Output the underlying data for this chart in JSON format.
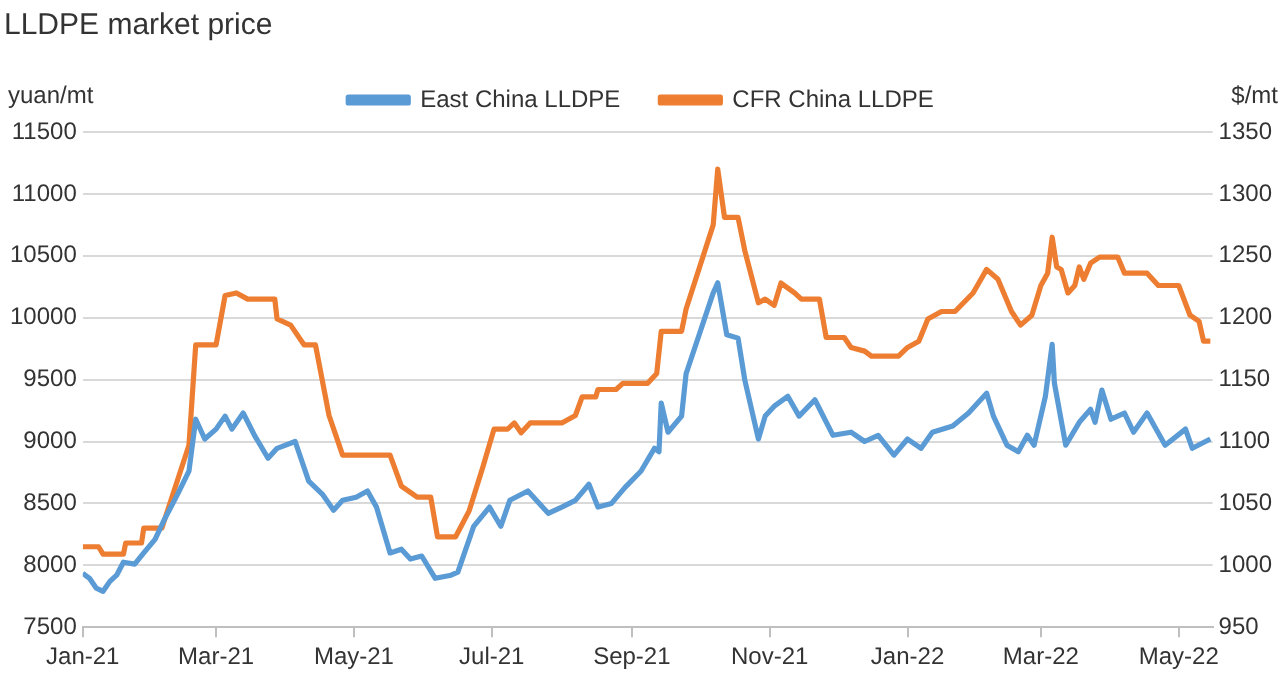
{
  "chart_data": {
    "type": "line",
    "title": "LLDPE market price",
    "ylabel": "yuan/mt",
    "y2label": "$/mt",
    "legend": "top",
    "grid": "y",
    "marker": "none",
    "line_style": "solid",
    "xlim": [
      "2021-01-01",
      "2022-05-16"
    ],
    "xticks": [
      {
        "value": "2021-01-01",
        "label": "Jan-21"
      },
      {
        "value": "2021-03-01",
        "label": "Mar-21"
      },
      {
        "value": "2021-05-01",
        "label": "May-21"
      },
      {
        "value": "2021-07-01",
        "label": "Jul-21"
      },
      {
        "value": "2021-09-01",
        "label": "Sep-21"
      },
      {
        "value": "2021-11-01",
        "label": "Nov-21"
      },
      {
        "value": "2022-01-01",
        "label": "Jan-22"
      },
      {
        "value": "2022-03-01",
        "label": "Mar-22"
      },
      {
        "value": "2022-05-01",
        "label": "May-22"
      }
    ],
    "ylim": [
      7500,
      11500
    ],
    "yticks": [
      7500,
      8000,
      8500,
      9000,
      9500,
      10000,
      10500,
      11000,
      11500
    ],
    "y2lim": [
      950,
      1350
    ],
    "y2ticks": [
      950,
      1000,
      1050,
      1100,
      1150,
      1200,
      1250,
      1300,
      1350
    ],
    "series": [
      {
        "name": "East China LLDPE",
        "color": "#5b9bd5",
        "x": [
          "2021-01-01",
          "2021-01-04",
          "2021-01-07",
          "2021-01-10",
          "2021-01-13",
          "2021-01-16",
          "2021-01-19",
          "2021-01-24",
          "2021-01-28",
          "2021-02-02",
          "2021-02-06",
          "2021-02-12",
          "2021-02-17",
          "2021-02-20",
          "2021-02-24",
          "2021-03-01",
          "2021-03-05",
          "2021-03-08",
          "2021-03-13",
          "2021-03-18",
          "2021-03-24",
          "2021-03-28",
          "2021-04-05",
          "2021-04-11",
          "2021-04-17",
          "2021-04-22",
          "2021-04-26",
          "2021-05-02",
          "2021-05-07",
          "2021-05-11",
          "2021-05-17",
          "2021-05-22",
          "2021-05-26",
          "2021-05-31",
          "2021-06-06",
          "2021-06-13",
          "2021-06-16",
          "2021-06-23",
          "2021-06-30",
          "2021-07-05",
          "2021-07-09",
          "2021-07-17",
          "2021-07-26",
          "2021-08-01",
          "2021-08-07",
          "2021-08-13",
          "2021-08-17",
          "2021-08-23",
          "2021-08-29",
          "2021-09-05",
          "2021-09-11",
          "2021-09-13",
          "2021-09-14",
          "2021-09-17",
          "2021-09-23",
          "2021-09-25",
          "2021-10-07",
          "2021-10-09",
          "2021-10-13",
          "2021-10-18",
          "2021-10-21",
          "2021-10-27",
          "2021-10-30",
          "2021-11-03",
          "2021-11-09",
          "2021-11-14",
          "2021-11-21",
          "2021-11-29",
          "2021-12-07",
          "2021-12-13",
          "2021-12-19",
          "2021-12-26",
          "2022-01-01",
          "2022-01-07",
          "2022-01-12",
          "2022-01-21",
          "2022-01-28",
          "2022-02-05",
          "2022-02-08",
          "2022-02-14",
          "2022-02-19",
          "2022-02-23",
          "2022-02-26",
          "2022-03-03",
          "2022-03-06",
          "2022-03-07",
          "2022-03-12",
          "2022-03-18",
          "2022-03-23",
          "2022-03-25",
          "2022-03-28",
          "2022-04-01",
          "2022-04-07",
          "2022-04-11",
          "2022-04-17",
          "2022-04-25",
          "2022-05-04",
          "2022-05-07",
          "2022-05-15"
        ],
        "values": [
          7935,
          7895,
          7815,
          7790,
          7870,
          7920,
          8025,
          8010,
          8100,
          8210,
          8365,
          8575,
          8760,
          9180,
          9020,
          9100,
          9205,
          9100,
          9230,
          9050,
          8865,
          8945,
          9000,
          8680,
          8575,
          8445,
          8525,
          8550,
          8600,
          8470,
          8100,
          8130,
          8050,
          8075,
          7895,
          7920,
          7945,
          8315,
          8470,
          8315,
          8525,
          8600,
          8420,
          8470,
          8525,
          8655,
          8470,
          8500,
          8630,
          8760,
          8945,
          8917,
          9310,
          9075,
          9205,
          9547,
          10200,
          10282,
          9862,
          9835,
          9495,
          9020,
          9205,
          9285,
          9365,
          9205,
          9337,
          9050,
          9075,
          9000,
          9050,
          8890,
          9020,
          8945,
          9075,
          9125,
          9230,
          9390,
          9205,
          8970,
          8917,
          9050,
          8970,
          9365,
          9785,
          9470,
          8970,
          9155,
          9260,
          9155,
          9415,
          9180,
          9230,
          9075,
          9230,
          8970,
          9100,
          8945,
          9020
        ]
      },
      {
        "name": "CFR China LLDPE",
        "color": "#ed7d31",
        "axis": "y2",
        "x": [
          "2021-01-01",
          "2021-01-08",
          "2021-01-10",
          "2021-01-19",
          "2021-01-20",
          "2021-01-27",
          "2021-01-28",
          "2021-02-05",
          "2021-02-17",
          "2021-02-20",
          "2021-03-01",
          "2021-03-05",
          "2021-03-10",
          "2021-03-15",
          "2021-03-27",
          "2021-03-28",
          "2021-04-03",
          "2021-04-09",
          "2021-04-14",
          "2021-04-20",
          "2021-04-26",
          "2021-05-17",
          "2021-05-22",
          "2021-05-29",
          "2021-06-04",
          "2021-06-07",
          "2021-06-15",
          "2021-06-21",
          "2021-06-27",
          "2021-07-02",
          "2021-07-08",
          "2021-07-11",
          "2021-07-14",
          "2021-07-18",
          "2021-08-01",
          "2021-08-07",
          "2021-08-10",
          "2021-08-16",
          "2021-08-17",
          "2021-08-25",
          "2021-08-28",
          "2021-09-08",
          "2021-09-12",
          "2021-09-14",
          "2021-09-23",
          "2021-09-25",
          "2021-10-07",
          "2021-10-09",
          "2021-10-12",
          "2021-10-18",
          "2021-10-21",
          "2021-10-27",
          "2021-10-30",
          "2021-11-03",
          "2021-11-06",
          "2021-11-12",
          "2021-11-15",
          "2021-11-23",
          "2021-11-26",
          "2021-12-04",
          "2021-12-07",
          "2021-12-13",
          "2021-12-16",
          "2021-12-28",
          "2022-01-01",
          "2022-01-06",
          "2022-01-10",
          "2022-01-16",
          "2022-01-22",
          "2022-01-30",
          "2022-02-05",
          "2022-02-10",
          "2022-02-16",
          "2022-02-20",
          "2022-02-25",
          "2022-03-01",
          "2022-03-04",
          "2022-03-06",
          "2022-03-08",
          "2022-03-10",
          "2022-03-13",
          "2022-03-16",
          "2022-03-18",
          "2022-03-20",
          "2022-03-23",
          "2022-03-27",
          "2022-04-04",
          "2022-04-07",
          "2022-04-17",
          "2022-04-22",
          "2022-05-01",
          "2022-05-06",
          "2022-05-10",
          "2022-05-12",
          "2022-05-15"
        ],
        "values": [
          1015,
          1015,
          1009,
          1009,
          1018,
          1018,
          1030,
          1030,
          1097,
          1178,
          1178,
          1218,
          1220,
          1215,
          1215,
          1199,
          1194,
          1178,
          1178,
          1121,
          1089,
          1089,
          1064,
          1055,
          1055,
          1023,
          1023,
          1044,
          1079,
          1110,
          1110,
          1115,
          1107,
          1115,
          1115,
          1121,
          1136,
          1136,
          1142,
          1142,
          1147,
          1147,
          1155,
          1189,
          1189,
          1207,
          1275,
          1320,
          1281,
          1281,
          1254,
          1212,
          1215,
          1210,
          1228,
          1220,
          1215,
          1215,
          1184,
          1184,
          1176,
          1173,
          1169,
          1169,
          1176,
          1181,
          1199,
          1205,
          1205,
          1220,
          1239,
          1231,
          1205,
          1194,
          1202,
          1226,
          1236,
          1265,
          1241,
          1239,
          1220,
          1226,
          1241,
          1231,
          1244,
          1249,
          1249,
          1236,
          1236,
          1226,
          1226,
          1202,
          1197,
          1181,
          1181
        ]
      }
    ]
  }
}
